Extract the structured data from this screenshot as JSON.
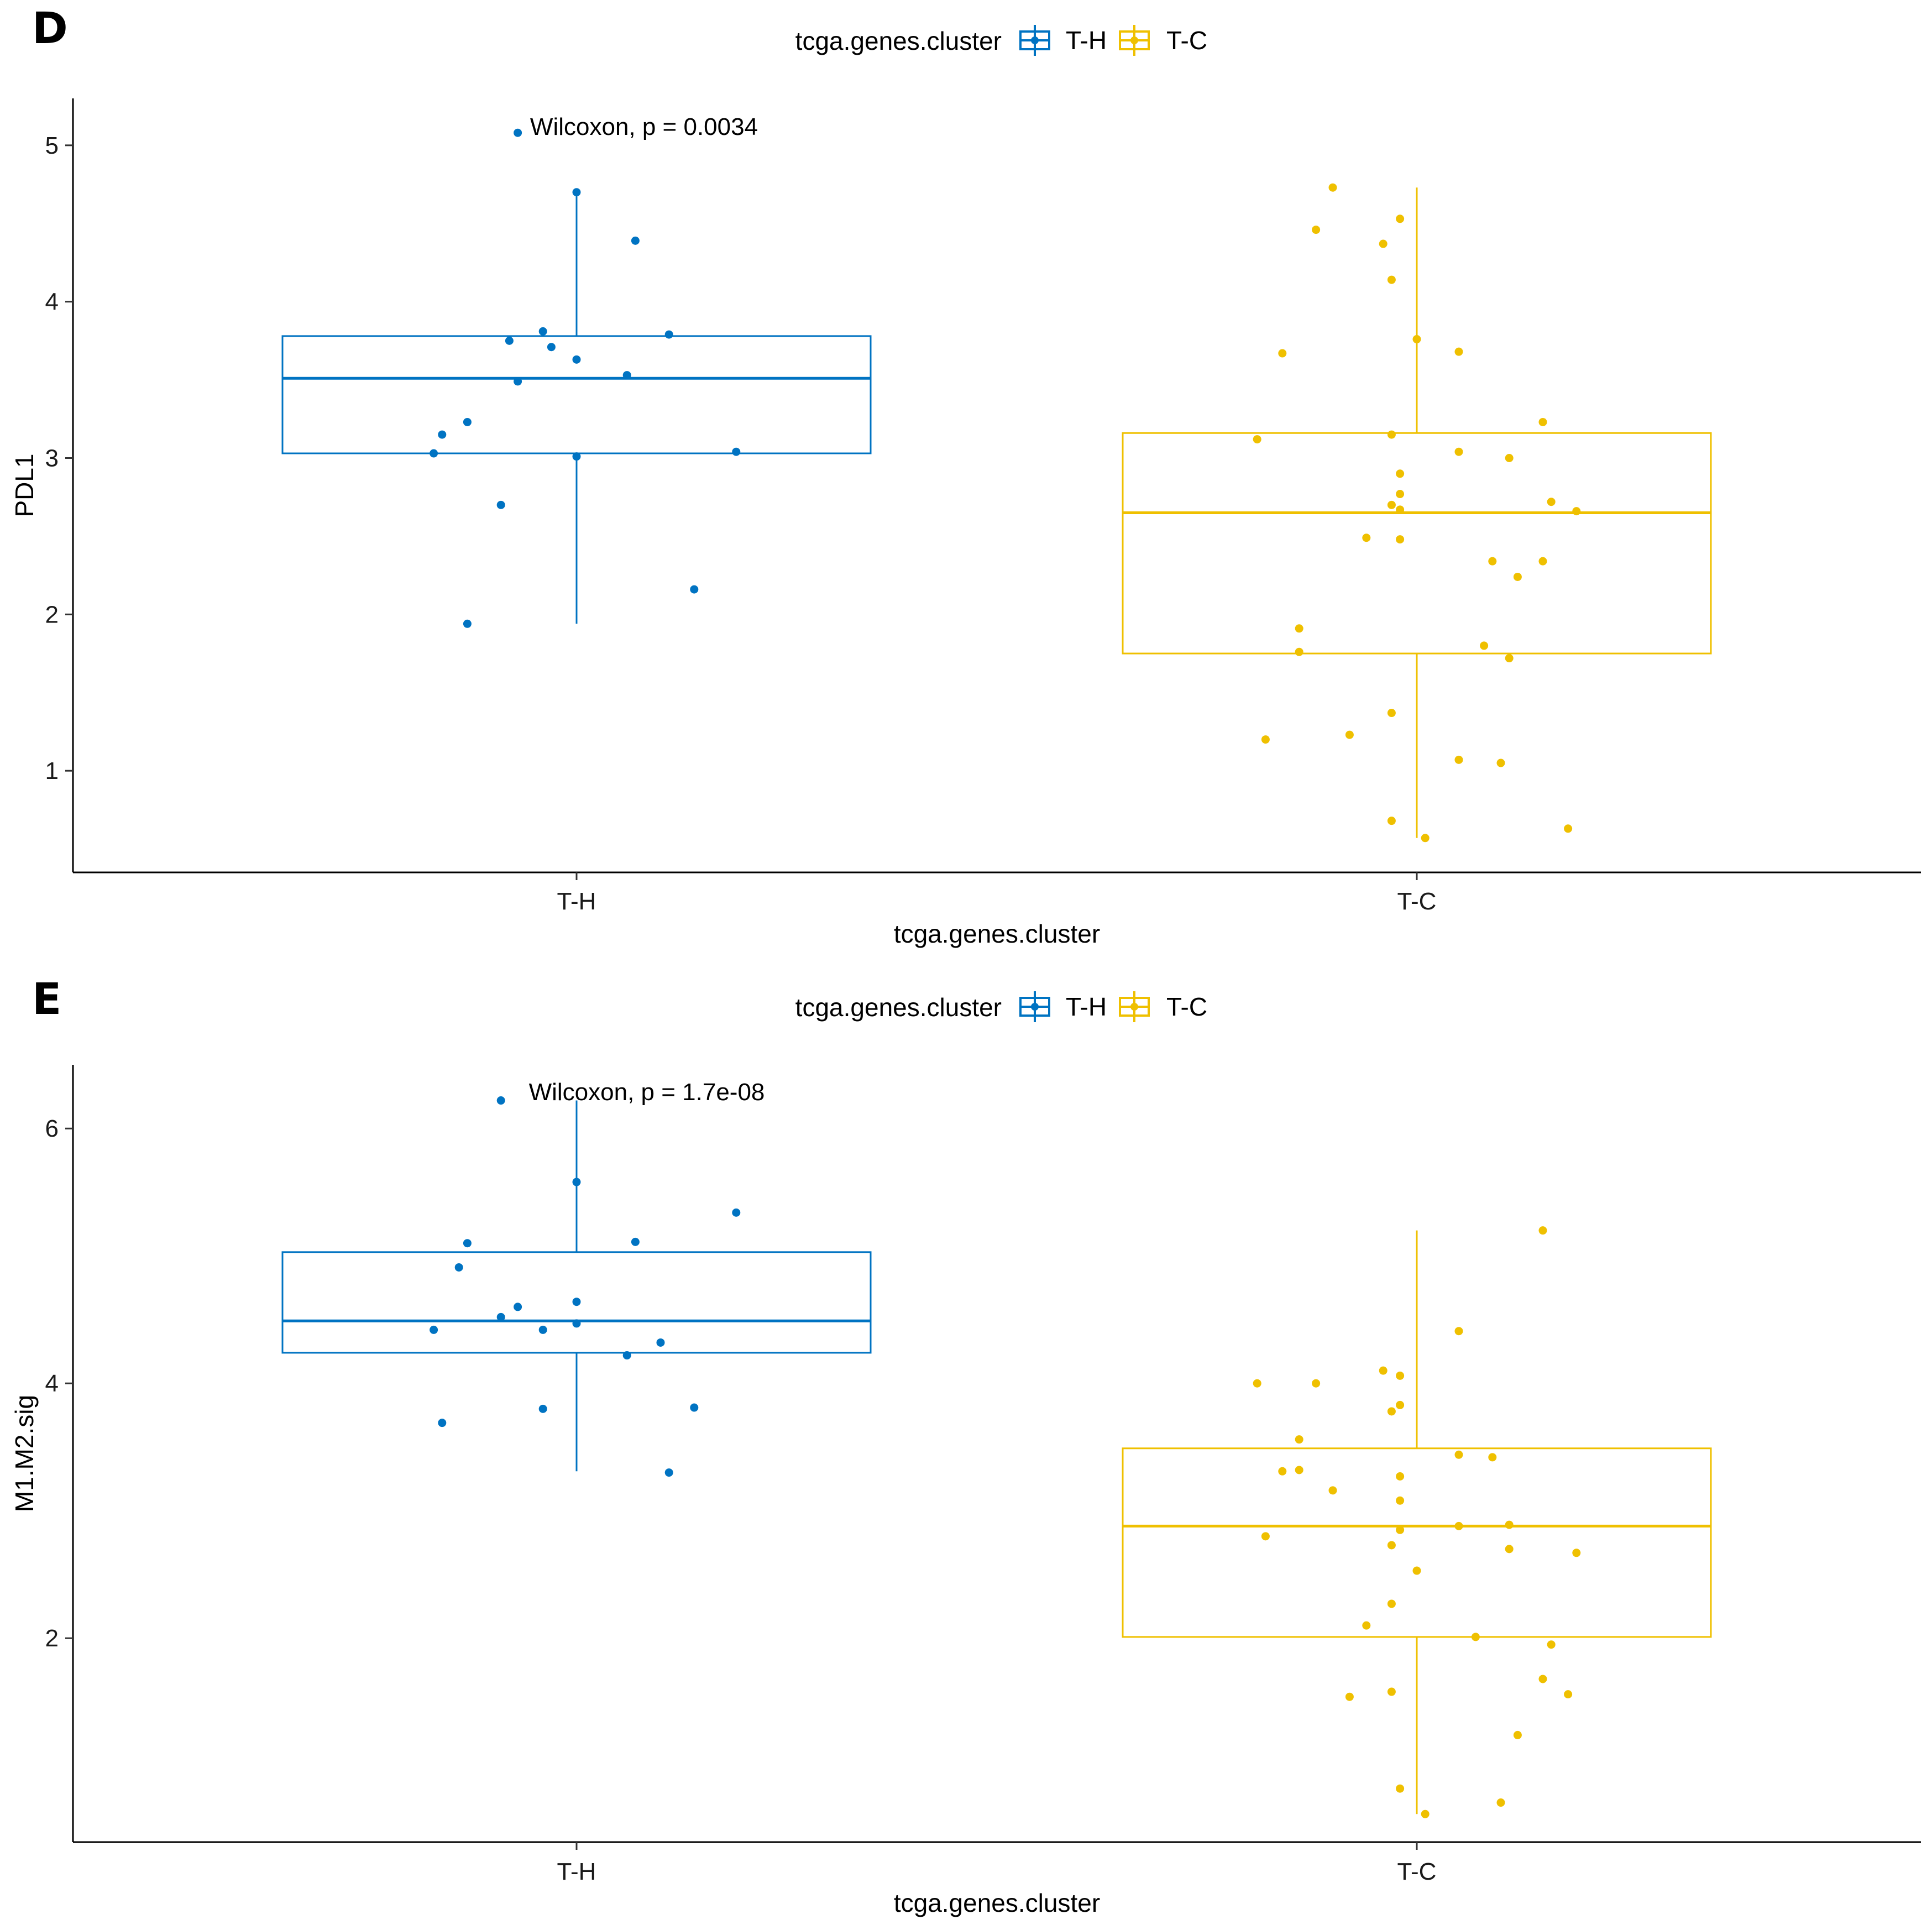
{
  "chart_data": [
    {
      "type": "box",
      "panel_label": "D",
      "legend_title": "tcga.genes.cluster",
      "categories": [
        "T-H",
        "T-C"
      ],
      "xlabel": "tcga.genes.cluster",
      "ylabel": "PDL1",
      "ylim": [
        0.35,
        5.3
      ],
      "yticks": [
        1,
        2,
        3,
        4,
        5
      ],
      "yticks_labels": [
        "1",
        "2",
        "3",
        "4",
        "5"
      ],
      "annotation": "Wilcoxon, p = 0.0034",
      "boxes": [
        {
          "group": "T-H",
          "q1": 3.03,
          "median": 3.51,
          "q3": 3.78,
          "whisker_low": 1.94,
          "whisker_high": 4.7
        },
        {
          "group": "T-C",
          "q1": 1.75,
          "median": 2.65,
          "q3": 3.16,
          "whisker_low": 0.57,
          "whisker_high": 4.73
        }
      ],
      "series": [
        {
          "name": "T-H",
          "color": "#0073C2",
          "points": [
            {
              "x": -0.07,
              "y": 5.08
            },
            {
              "x": 0.0,
              "y": 4.7
            },
            {
              "x": 0.07,
              "y": 4.39
            },
            {
              "x": -0.04,
              "y": 3.81
            },
            {
              "x": 0.11,
              "y": 3.79
            },
            {
              "x": -0.08,
              "y": 3.75
            },
            {
              "x": -0.03,
              "y": 3.71
            },
            {
              "x": 0.0,
              "y": 3.63
            },
            {
              "x": 0.06,
              "y": 3.53
            },
            {
              "x": -0.07,
              "y": 3.49
            },
            {
              "x": -0.13,
              "y": 3.23
            },
            {
              "x": -0.16,
              "y": 3.15
            },
            {
              "x": -0.17,
              "y": 3.03
            },
            {
              "x": 0.19,
              "y": 3.04
            },
            {
              "x": 0.0,
              "y": 3.01
            },
            {
              "x": -0.09,
              "y": 2.7
            },
            {
              "x": 0.14,
              "y": 2.16
            },
            {
              "x": -0.13,
              "y": 1.94
            }
          ]
        },
        {
          "name": "T-C",
          "color": "#EFC000",
          "points": [
            {
              "x": -0.1,
              "y": 4.73
            },
            {
              "x": -0.02,
              "y": 4.53
            },
            {
              "x": -0.12,
              "y": 4.46
            },
            {
              "x": -0.04,
              "y": 4.37
            },
            {
              "x": -0.03,
              "y": 4.14
            },
            {
              "x": 0.0,
              "y": 3.76
            },
            {
              "x": 0.05,
              "y": 3.68
            },
            {
              "x": -0.16,
              "y": 3.67
            },
            {
              "x": 0.15,
              "y": 3.23
            },
            {
              "x": -0.03,
              "y": 3.15
            },
            {
              "x": -0.19,
              "y": 3.12
            },
            {
              "x": 0.05,
              "y": 3.04
            },
            {
              "x": 0.11,
              "y": 3.0
            },
            {
              "x": -0.02,
              "y": 2.9
            },
            {
              "x": -0.02,
              "y": 2.77
            },
            {
              "x": 0.16,
              "y": 2.72
            },
            {
              "x": -0.03,
              "y": 2.7
            },
            {
              "x": -0.02,
              "y": 2.67
            },
            {
              "x": 0.19,
              "y": 2.66
            },
            {
              "x": -0.06,
              "y": 2.49
            },
            {
              "x": -0.02,
              "y": 2.48
            },
            {
              "x": 0.09,
              "y": 2.34
            },
            {
              "x": 0.15,
              "y": 2.34
            },
            {
              "x": 0.12,
              "y": 2.24
            },
            {
              "x": -0.14,
              "y": 1.91
            },
            {
              "x": 0.08,
              "y": 1.8
            },
            {
              "x": -0.14,
              "y": 1.76
            },
            {
              "x": 0.11,
              "y": 1.72
            },
            {
              "x": -0.03,
              "y": 1.37
            },
            {
              "x": -0.08,
              "y": 1.23
            },
            {
              "x": -0.18,
              "y": 1.2
            },
            {
              "x": 0.05,
              "y": 1.07
            },
            {
              "x": 0.1,
              "y": 1.05
            },
            {
              "x": -0.03,
              "y": 0.68
            },
            {
              "x": 0.18,
              "y": 0.63
            },
            {
              "x": 0.01,
              "y": 0.57
            }
          ]
        }
      ]
    },
    {
      "type": "box",
      "panel_label": "E",
      "legend_title": "tcga.genes.cluster",
      "categories": [
        "T-H",
        "T-C"
      ],
      "xlabel": "tcga.genes.cluster",
      "ylabel": "M1.M2.sig",
      "ylim": [
        0.4,
        6.5
      ],
      "yticks": [
        2,
        4,
        6
      ],
      "yticks_labels": [
        "2",
        "4",
        "6"
      ],
      "annotation": "Wilcoxon, p = 1.7e-08",
      "boxes": [
        {
          "group": "T-H",
          "q1": 4.24,
          "median": 4.49,
          "q3": 5.03,
          "whisker_low": 3.31,
          "whisker_high": 6.22
        },
        {
          "group": "T-C",
          "q1": 2.01,
          "median": 2.88,
          "q3": 3.49,
          "whisker_low": 0.62,
          "whisker_high": 5.2
        }
      ],
      "series": [
        {
          "name": "T-H",
          "color": "#0073C2",
          "points": [
            {
              "x": -0.09,
              "y": 6.22
            },
            {
              "x": 0.0,
              "y": 5.58
            },
            {
              "x": 0.19,
              "y": 5.34
            },
            {
              "x": -0.13,
              "y": 5.1
            },
            {
              "x": 0.07,
              "y": 5.11
            },
            {
              "x": -0.14,
              "y": 4.91
            },
            {
              "x": 0.0,
              "y": 4.64
            },
            {
              "x": -0.07,
              "y": 4.6
            },
            {
              "x": -0.09,
              "y": 4.52
            },
            {
              "x": 0.0,
              "y": 4.47
            },
            {
              "x": -0.17,
              "y": 4.42
            },
            {
              "x": -0.04,
              "y": 4.42
            },
            {
              "x": 0.1,
              "y": 4.32
            },
            {
              "x": 0.06,
              "y": 4.22
            },
            {
              "x": -0.04,
              "y": 3.8
            },
            {
              "x": 0.14,
              "y": 3.81
            },
            {
              "x": -0.16,
              "y": 3.69
            },
            {
              "x": 0.11,
              "y": 3.3
            }
          ]
        },
        {
          "name": "T-C",
          "color": "#EFC000",
          "points": [
            {
              "x": 0.15,
              "y": 5.2
            },
            {
              "x": 0.05,
              "y": 4.41
            },
            {
              "x": -0.04,
              "y": 4.1
            },
            {
              "x": -0.02,
              "y": 4.06
            },
            {
              "x": -0.19,
              "y": 4.0
            },
            {
              "x": -0.12,
              "y": 4.0
            },
            {
              "x": -0.02,
              "y": 3.83
            },
            {
              "x": -0.03,
              "y": 3.78
            },
            {
              "x": -0.14,
              "y": 3.56
            },
            {
              "x": 0.05,
              "y": 3.44
            },
            {
              "x": 0.09,
              "y": 3.42
            },
            {
              "x": -0.14,
              "y": 3.32
            },
            {
              "x": -0.16,
              "y": 3.31
            },
            {
              "x": -0.02,
              "y": 3.27
            },
            {
              "x": -0.1,
              "y": 3.16
            },
            {
              "x": -0.02,
              "y": 3.08
            },
            {
              "x": 0.11,
              "y": 2.89
            },
            {
              "x": 0.05,
              "y": 2.88
            },
            {
              "x": -0.02,
              "y": 2.85
            },
            {
              "x": -0.18,
              "y": 2.8
            },
            {
              "x": -0.03,
              "y": 2.73
            },
            {
              "x": 0.11,
              "y": 2.7
            },
            {
              "x": 0.19,
              "y": 2.67
            },
            {
              "x": 0.0,
              "y": 2.53
            },
            {
              "x": -0.03,
              "y": 2.27
            },
            {
              "x": -0.06,
              "y": 2.1
            },
            {
              "x": 0.07,
              "y": 2.01
            },
            {
              "x": 0.16,
              "y": 1.95
            },
            {
              "x": 0.15,
              "y": 1.68
            },
            {
              "x": -0.03,
              "y": 1.58
            },
            {
              "x": 0.18,
              "y": 1.56
            },
            {
              "x": -0.08,
              "y": 1.54
            },
            {
              "x": 0.12,
              "y": 1.24
            },
            {
              "x": -0.02,
              "y": 0.82
            },
            {
              "x": 0.1,
              "y": 0.71
            },
            {
              "x": 0.01,
              "y": 0.62
            }
          ]
        }
      ]
    }
  ]
}
